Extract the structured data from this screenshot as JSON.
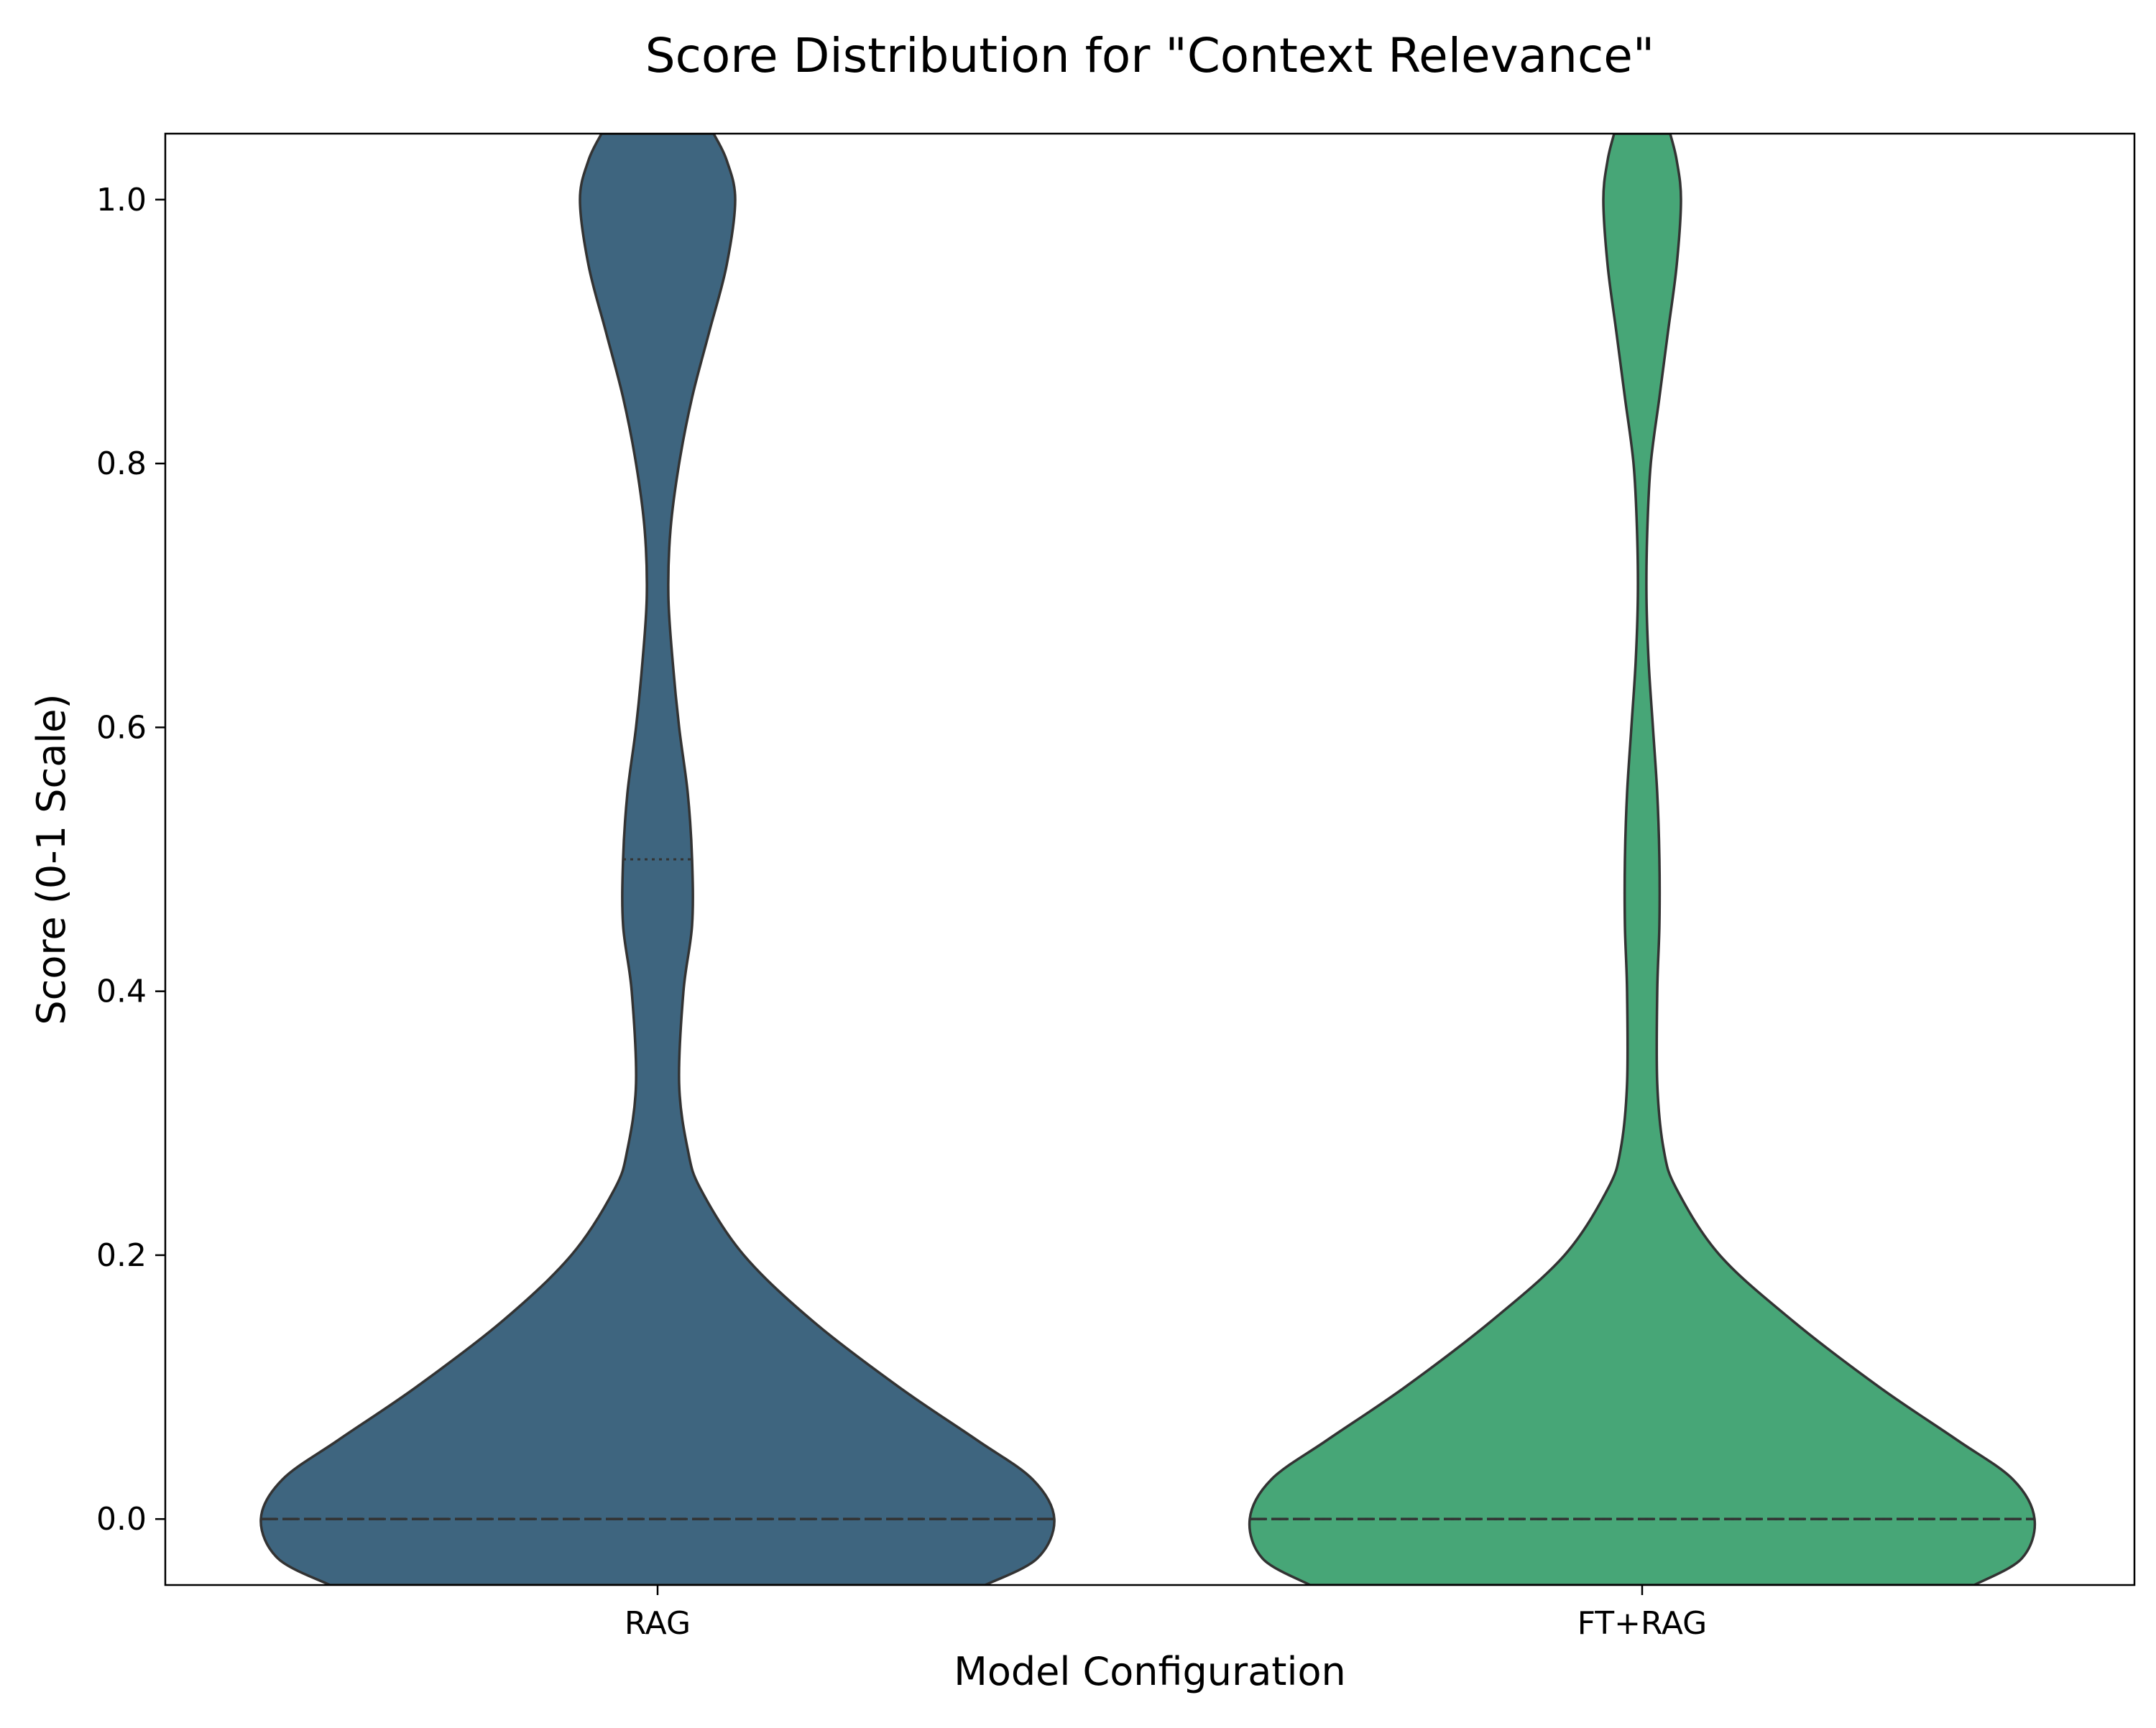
{
  "chart_data": {
    "type": "violin",
    "title": "Score Distribution for \"Context Relevance\"",
    "xlabel": "Model Configuration",
    "ylabel": "Score (0-1 Scale)",
    "ylim": [
      -0.05,
      1.05
    ],
    "yticks": [
      "0.0",
      "0.2",
      "0.4",
      "0.6",
      "0.8",
      "1.0"
    ],
    "categories": [
      "RAG",
      "FT+RAG"
    ],
    "grid": false,
    "series": [
      {
        "category": "RAG",
        "color": "#3E657F",
        "quartiles": [
          0.0,
          0.0,
          0.5
        ],
        "density": {
          "y": [
            -0.05,
            -0.03,
            0.0,
            0.03,
            0.06,
            0.1,
            0.15,
            0.2,
            0.25,
            0.28,
            0.33,
            0.4,
            0.45,
            0.5,
            0.55,
            0.6,
            0.65,
            0.7,
            0.75,
            0.8,
            0.85,
            0.9,
            0.95,
            1.0,
            1.03,
            1.05
          ],
          "half_width": [
            0.76,
            0.88,
            0.92,
            0.87,
            0.74,
            0.56,
            0.36,
            0.2,
            0.1,
            0.07,
            0.05,
            0.06,
            0.08,
            0.08,
            0.07,
            0.05,
            0.035,
            0.025,
            0.03,
            0.05,
            0.08,
            0.12,
            0.16,
            0.18,
            0.16,
            0.13
          ]
        }
      },
      {
        "category": "FT+RAG",
        "color": "#47A677",
        "quartiles": [
          0.0,
          0.0,
          0.0
        ],
        "density": {
          "y": [
            -0.05,
            -0.03,
            0.0,
            0.03,
            0.06,
            0.1,
            0.15,
            0.2,
            0.25,
            0.28,
            0.33,
            0.4,
            0.45,
            0.5,
            0.55,
            0.6,
            0.65,
            0.7,
            0.75,
            0.8,
            0.85,
            0.9,
            0.95,
            1.0,
            1.03,
            1.05
          ],
          "half_width": [
            0.77,
            0.88,
            0.91,
            0.86,
            0.73,
            0.55,
            0.35,
            0.18,
            0.08,
            0.05,
            0.035,
            0.035,
            0.04,
            0.04,
            0.035,
            0.025,
            0.015,
            0.01,
            0.012,
            0.02,
            0.04,
            0.06,
            0.08,
            0.09,
            0.08,
            0.065
          ]
        }
      }
    ]
  }
}
